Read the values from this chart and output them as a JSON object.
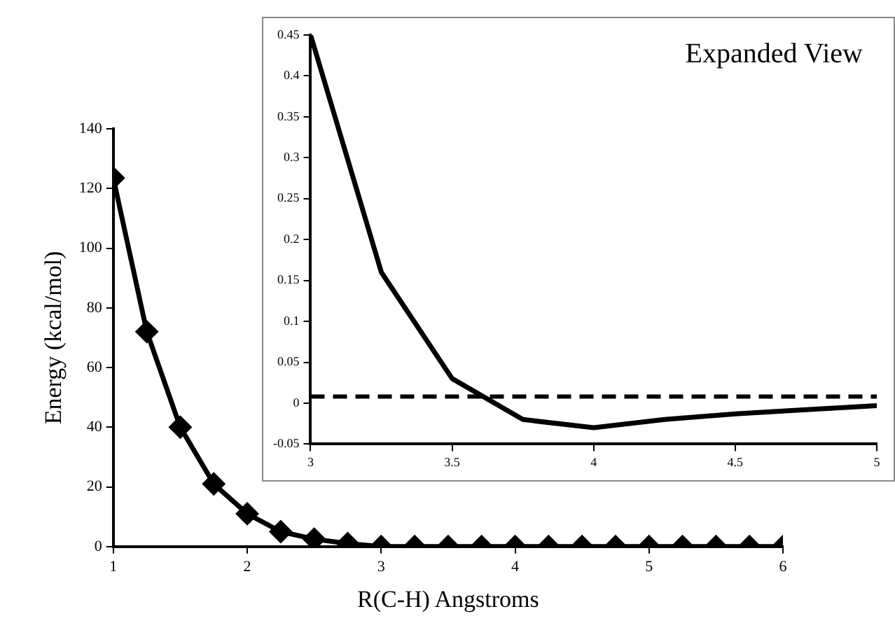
{
  "chart_data": [
    {
      "type": "line",
      "xlabel": "R(C-H) Angstroms",
      "ylabel": "Energy (kcal/mol)",
      "x": [
        1,
        1.25,
        1.5,
        1.75,
        2,
        2.25,
        2.5,
        2.75,
        3,
        3.25,
        3.5,
        3.75,
        4,
        4.25,
        4.5,
        4.75,
        5,
        5.25,
        5.5,
        5.75,
        6
      ],
      "series": [
        {
          "color": "#000000",
          "values": [
            123.5,
            72,
            40,
            21,
            11,
            5,
            2.5,
            1,
            0,
            0,
            0,
            0,
            0,
            0,
            0,
            0,
            0,
            0,
            0,
            0,
            0
          ]
        }
      ],
      "xlim": [
        1,
        6
      ],
      "xticks": [
        1,
        2,
        3,
        4,
        5,
        6
      ],
      "ylim": [
        0,
        140
      ],
      "yticks": [
        0,
        20,
        40,
        60,
        80,
        100,
        120,
        140
      ],
      "marker": "diamond",
      "line_style": "solid",
      "grid": false,
      "legend": false
    },
    {
      "type": "line",
      "title": "Expanded View",
      "x": [
        3,
        3.25,
        3.5,
        3.75,
        4,
        4.25,
        4.5,
        4.75,
        5
      ],
      "series": [
        {
          "color": "#000000",
          "values": [
            0.45,
            0.16,
            0.03,
            -0.02,
            -0.03,
            -0.02,
            -0.013,
            -0.008,
            -0.003
          ]
        }
      ],
      "xlim": [
        3,
        5
      ],
      "xticks": [
        3,
        3.5,
        4,
        4.5,
        5
      ],
      "ylim": [
        -0.05,
        0.45
      ],
      "yticks": [
        -0.05,
        0,
        0.05,
        0.1,
        0.15,
        0.2,
        0.25,
        0.3,
        0.35,
        0.4,
        0.45
      ],
      "ref_lines": [
        {
          "axis": "y",
          "value": 0.008,
          "color": "#000000",
          "line_style": "dashed"
        }
      ],
      "marker": "none",
      "line_style": "solid",
      "grid": false,
      "legend": false
    }
  ]
}
